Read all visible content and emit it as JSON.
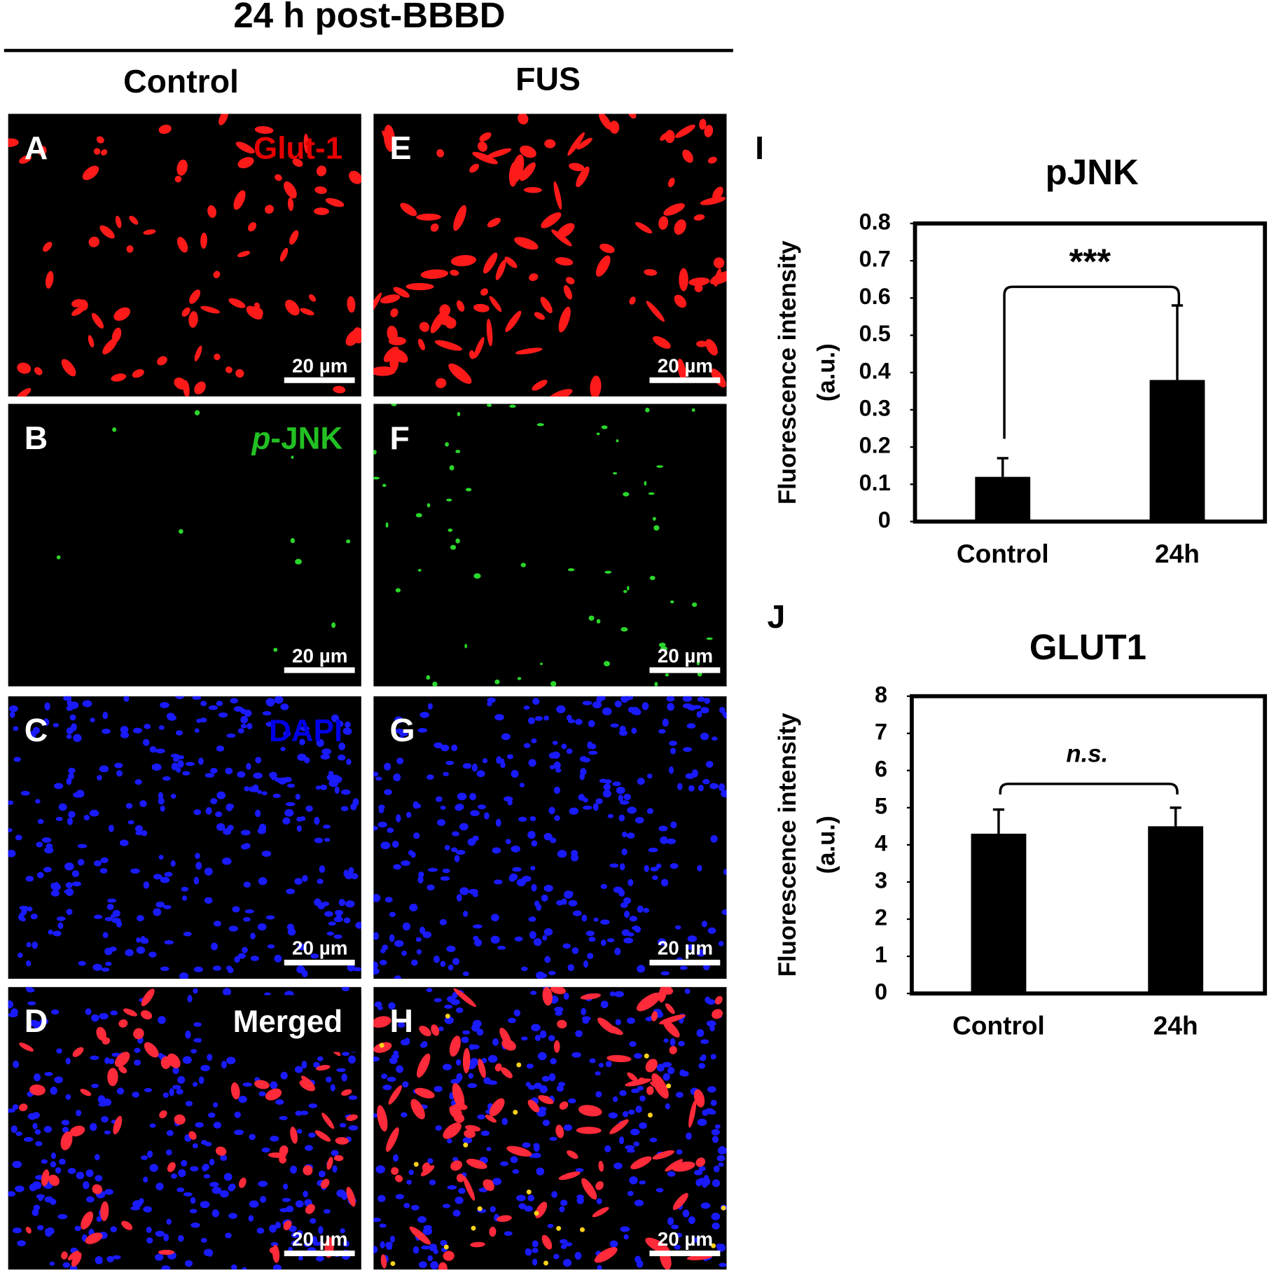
{
  "header": {
    "title": "24 h post-BBBD",
    "columns": [
      "Control",
      "FUS"
    ]
  },
  "panels": [
    {
      "letter": "A",
      "stain": "red",
      "label": "Glut-1",
      "label_color": "#e60000",
      "scale_bar": "20 µm"
    },
    {
      "letter": "B",
      "stain": "green",
      "label_italic": "p",
      "label": "-JNK",
      "label_color": "#22c022",
      "scale_bar": "20 µm"
    },
    {
      "letter": "C",
      "stain": "blue",
      "label": "DAPI",
      "label_color": "#0000e6",
      "scale_bar": "20 µm"
    },
    {
      "letter": "D",
      "stain": "merged",
      "label": "Merged",
      "label_color": "#ffffff",
      "scale_bar": "20 µm"
    },
    {
      "letter": "E",
      "stain": "red",
      "scale_bar": "20 µm"
    },
    {
      "letter": "F",
      "stain": "green",
      "scale_bar": "20 µm"
    },
    {
      "letter": "G",
      "stain": "blue",
      "scale_bar": "20 µm"
    },
    {
      "letter": "H",
      "stain": "merged",
      "scale_bar": "20 µm"
    }
  ],
  "chart_data": [
    {
      "type": "bar",
      "panel_letter": "I",
      "title": "pJNK",
      "ylabel": [
        "Fluorescence intensity",
        "(a.u.)"
      ],
      "categories": [
        "Control",
        "24h"
      ],
      "values": [
        0.12,
        0.38
      ],
      "errors": [
        0.05,
        0.2
      ],
      "significance": "***",
      "ylim": [
        0,
        0.8
      ],
      "yticks": [
        0,
        0.1,
        0.2,
        0.3,
        0.4,
        0.5,
        0.6,
        0.7,
        0.8
      ],
      "color": "#000000"
    },
    {
      "type": "bar",
      "panel_letter": "J",
      "title": "GLUT1",
      "ylabel": [
        "Fluorescence intensity",
        "(a.u.)"
      ],
      "categories": [
        "Control",
        "24h"
      ],
      "values": [
        4.3,
        4.5
      ],
      "errors": [
        0.65,
        0.5
      ],
      "significance": "n.s.",
      "ylim": [
        0,
        8
      ],
      "yticks": [
        0,
        1,
        2,
        3,
        4,
        5,
        6,
        7,
        8
      ],
      "color": "#000000"
    }
  ]
}
